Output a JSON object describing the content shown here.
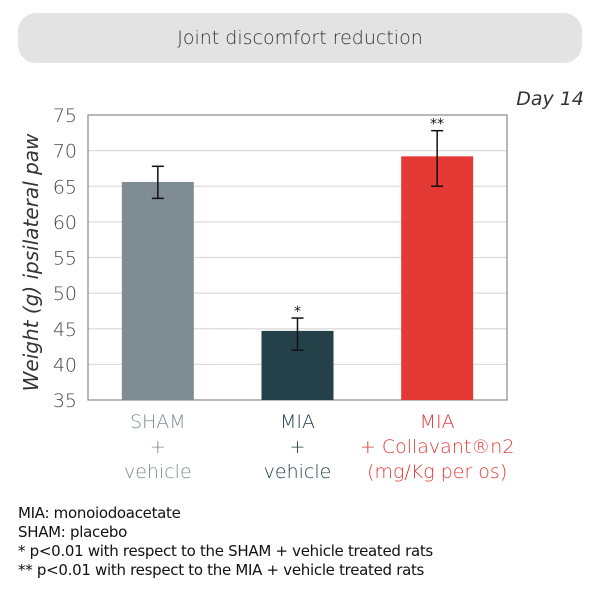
{
  "header": {
    "title": "Joint discomfort reduction"
  },
  "chart_data": {
    "type": "bar",
    "title": "Joint discomfort reduction",
    "subtitle": "Day 14",
    "xlabel": "",
    "ylabel": "Weight (g) ipsilateral paw",
    "ylim": [
      35,
      75
    ],
    "yticks": [
      "35",
      "40",
      "45",
      "50",
      "55",
      "60",
      "65",
      "70",
      "75"
    ],
    "grid": true,
    "categories": [
      {
        "lines": [
          "SHAM",
          "+",
          "vehicle"
        ],
        "color": "#7f8c93"
      },
      {
        "lines": [
          "MIA",
          "+",
          "vehicle"
        ],
        "color": "#24414a"
      },
      {
        "lines": [
          "MIA",
          "+ Collavant®n2",
          "(mg/Kg per os)"
        ],
        "color": "#e53935"
      }
    ],
    "values": [
      65.6,
      44.7,
      69.2
    ],
    "error_low": [
      63.3,
      42.0,
      65.0
    ],
    "error_high": [
      67.8,
      46.5,
      72.8
    ],
    "annotations": [
      "",
      "*",
      "**"
    ]
  },
  "notes": [
    "MIA: monoiodoacetate",
    "SHAM: placebo",
    "* p<0.01 with respect to the SHAM + vehicle treated rats",
    "** p<0.01 with respect to the MIA + vehicle treated rats"
  ]
}
